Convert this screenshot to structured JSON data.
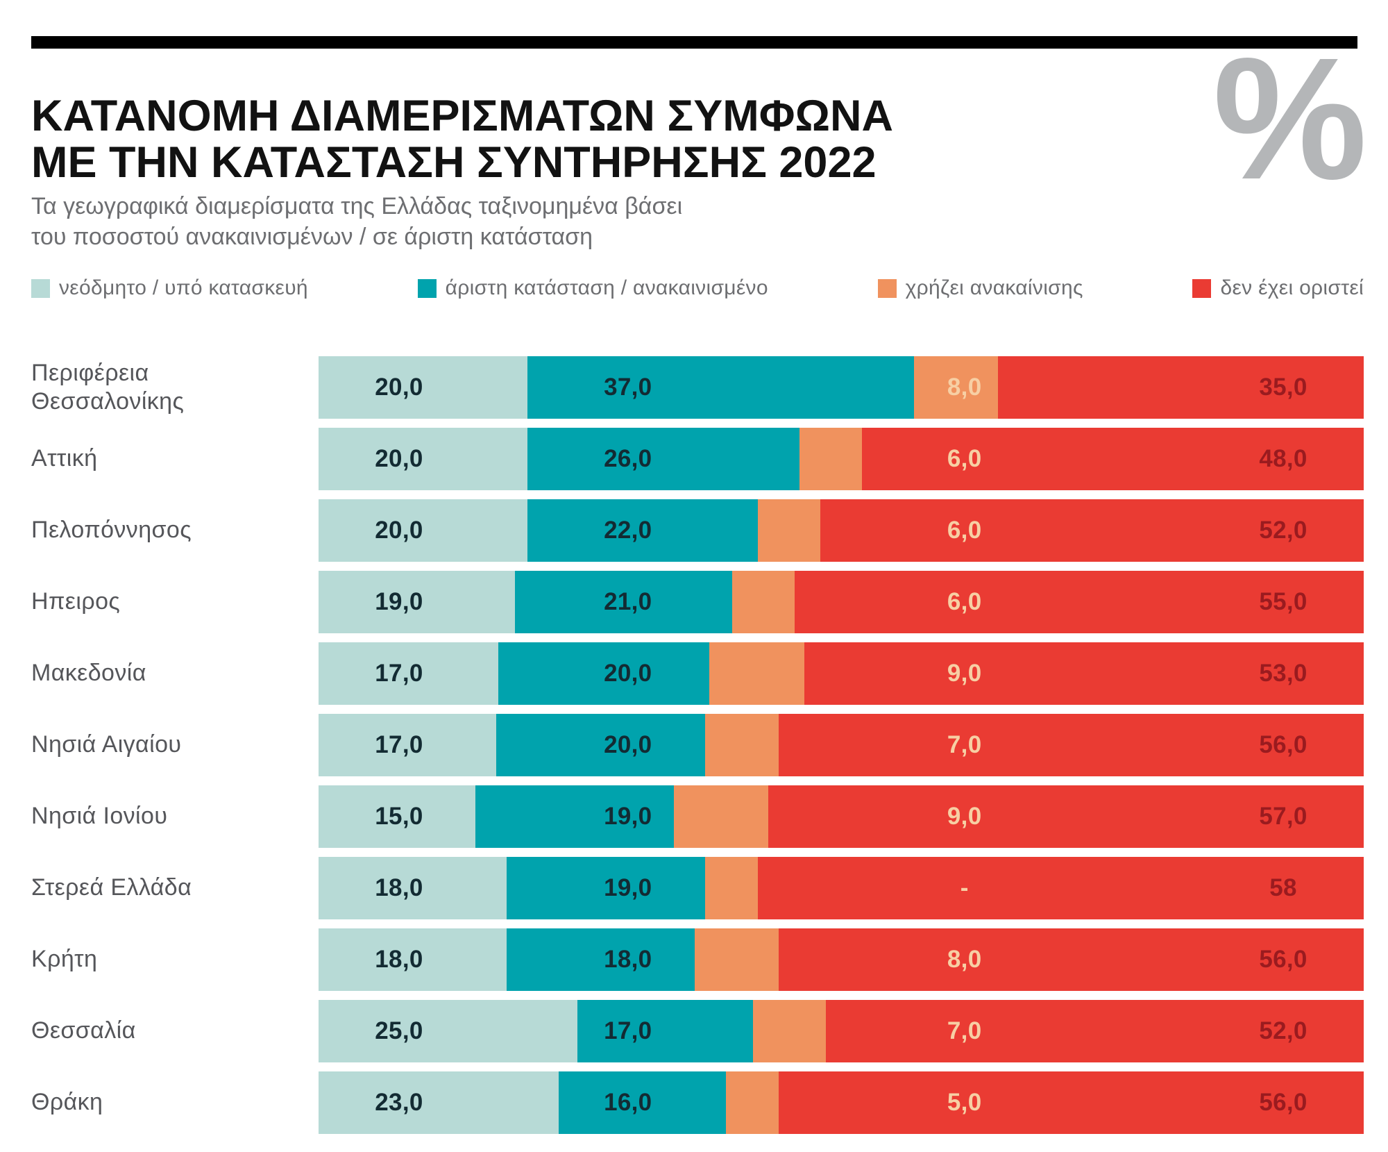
{
  "header": {
    "title_line1": "ΚΑΤΑΝΟΜΗ ΔΙΑΜΕΡΙΣΜΑΤΩΝ ΣΥΜΦΩΝΑ",
    "title_line2": "ΜΕ ΤΗΝ ΚΑΤΑΣΤΑΣΗ ΣΥΝΤΗΡΗΣΗΣ 2022",
    "subtitle_line1": "Τα γεωγραφικά διαμερίσματα της Ελλάδας ταξινομημένα βάσει",
    "subtitle_line2": "του ποσοστού ανακαινισμένων / σε άριστη κατάσταση",
    "percent_symbol": "%"
  },
  "colors": {
    "new_build": "#b7dad6",
    "excellent": "#00a3ad",
    "needs_renovation": "#f0925e",
    "not_defined": "#ea3b33",
    "value_dark": "#132b33",
    "value_peach": "#f7cfa4",
    "value_maroon": "#9a1b1f",
    "title_black": "#121212",
    "gray_text": "#6d6e71",
    "row_label_gray": "#55565a",
    "percent_gray": "#b4b6b8"
  },
  "chart_data": {
    "type": "bar",
    "orientation": "horizontal",
    "stacked": true,
    "unit": "%",
    "title": "ΚΑΤΑΝΟΜΗ ΔΙΑΜΕΡΙΣΜΑΤΩΝ ΣΥΜΦΩΝΑ ΜΕ ΤΗΝ ΚΑΤΑΣΤΑΣΗ ΣΥΝΤΗΡΗΣΗΣ 2022",
    "subtitle": "Τα γεωγραφικά διαμερίσματα της Ελλάδας ταξινομημένα βάσει του ποσοστού ανακαινισμένων / σε άριστη κατάσταση",
    "legend_position": "top",
    "xlim": [
      0,
      100
    ],
    "categories": [
      "Περιφέρεια Θεσσαλονίκης",
      "Αττική",
      "Πελοπόννησος",
      "Ηπειρος",
      "Μακεδονία",
      "Νησιά Αιγαίου",
      "Νησιά Ιονίου",
      "Στερεά Ελλάδα",
      "Κρήτη",
      "Θεσσαλία",
      "Θράκη"
    ],
    "series": [
      {
        "name": "νεόδμητο / υπό κατασκευή",
        "color": "#b7dad6",
        "values": [
          20,
          20,
          20,
          19,
          17,
          17,
          15,
          18,
          18,
          25,
          23
        ]
      },
      {
        "name": "άριστη κατάσταση / ανακαινισμένο",
        "color": "#00a3ad",
        "values": [
          37,
          26,
          22,
          21,
          20,
          20,
          19,
          19,
          18,
          17,
          16
        ]
      },
      {
        "name": "χρήζει ανακαίνισης",
        "color": "#f0925e",
        "values": [
          8,
          6,
          6,
          6,
          9,
          7,
          9,
          5,
          8,
          7,
          5
        ]
      },
      {
        "name": "δεν έχει οριστεί",
        "color": "#ea3b33",
        "values": [
          35,
          48,
          52,
          55,
          53,
          56,
          57,
          58,
          56,
          52,
          56
        ]
      }
    ],
    "value_labels": [
      [
        "20,0",
        "37,0",
        "8,0",
        "35,0"
      ],
      [
        "20,0",
        "26,0",
        "6,0",
        "48,0"
      ],
      [
        "20,0",
        "22,0",
        "6,0",
        "52,0"
      ],
      [
        "19,0",
        "21,0",
        "6,0",
        "55,0"
      ],
      [
        "17,0",
        "20,0",
        "9,0",
        "53,0"
      ],
      [
        "17,0",
        "20,0",
        "7,0",
        "56,0"
      ],
      [
        "15,0",
        "19,0",
        "9,0",
        "57,0"
      ],
      [
        "18,0",
        "19,0",
        "-",
        "58"
      ],
      [
        "18,0",
        "18,0",
        "8,0",
        "56,0"
      ],
      [
        "25,0",
        "17,0",
        "7,0",
        "52,0"
      ],
      [
        "23,0",
        "16,0",
        "5,0",
        "56,0"
      ]
    ]
  }
}
